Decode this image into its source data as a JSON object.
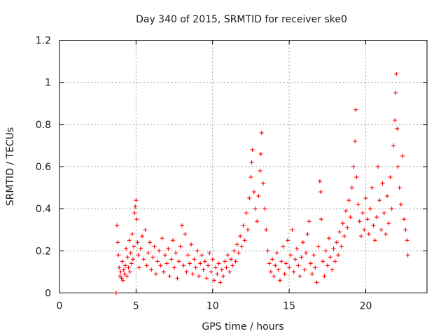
{
  "chart_data": {
    "type": "scatter",
    "title": "Day 340 of 2015, SRMTID for receiver ske0",
    "xlabel": "GPS time / hours",
    "ylabel": "SRMTID / TECUs",
    "xlim": [
      0,
      24
    ],
    "ylim": [
      0,
      1.2
    ],
    "xticks": [
      0,
      5,
      10,
      15,
      20
    ],
    "xtick_labels": [
      "0",
      "5",
      "10",
      "15",
      "20"
    ],
    "yticks": [
      0,
      0.2,
      0.4,
      0.6,
      0.8,
      1,
      1.2
    ],
    "ytick_labels": [
      "0",
      "0.2",
      "0.4",
      "0.6",
      "0.8",
      "1",
      "1.2"
    ],
    "grid": true,
    "marker": "+",
    "color": "#ff0000",
    "series": [
      {
        "name": "SRMTID",
        "points": [
          [
            3.7,
            0.0
          ],
          [
            3.75,
            0.32
          ],
          [
            3.8,
            0.24
          ],
          [
            3.85,
            0.18
          ],
          [
            3.9,
            0.12
          ],
          [
            3.95,
            0.08
          ],
          [
            4.0,
            0.1
          ],
          [
            4.05,
            0.07
          ],
          [
            4.1,
            0.15
          ],
          [
            4.15,
            0.06
          ],
          [
            4.2,
            0.11
          ],
          [
            4.25,
            0.09
          ],
          [
            4.3,
            0.13
          ],
          [
            4.35,
            0.21
          ],
          [
            4.4,
            0.08
          ],
          [
            4.45,
            0.17
          ],
          [
            4.5,
            0.12
          ],
          [
            4.55,
            0.25
          ],
          [
            4.6,
            0.1
          ],
          [
            4.65,
            0.19
          ],
          [
            4.7,
            0.14
          ],
          [
            4.75,
            0.28
          ],
          [
            4.8,
            0.16
          ],
          [
            4.85,
            0.22
          ],
          [
            4.9,
            0.38
          ],
          [
            4.95,
            0.41
          ],
          [
            5.0,
            0.44
          ],
          [
            5.05,
            0.35
          ],
          [
            5.1,
            0.24
          ],
          [
            5.15,
            0.18
          ],
          [
            5.2,
            0.12
          ],
          [
            5.3,
            0.21
          ],
          [
            5.4,
            0.27
          ],
          [
            5.5,
            0.16
          ],
          [
            5.6,
            0.3
          ],
          [
            5.7,
            0.13
          ],
          [
            5.8,
            0.19
          ],
          [
            5.9,
            0.24
          ],
          [
            6.0,
            0.11
          ],
          [
            6.1,
            0.17
          ],
          [
            6.2,
            0.22
          ],
          [
            6.3,
            0.09
          ],
          [
            6.4,
            0.15
          ],
          [
            6.5,
            0.2
          ],
          [
            6.6,
            0.13
          ],
          [
            6.7,
            0.26
          ],
          [
            6.8,
            0.1
          ],
          [
            6.9,
            0.18
          ],
          [
            7.0,
            0.14
          ],
          [
            7.1,
            0.21
          ],
          [
            7.2,
            0.08
          ],
          [
            7.3,
            0.16
          ],
          [
            7.4,
            0.25
          ],
          [
            7.5,
            0.12
          ],
          [
            7.6,
            0.19
          ],
          [
            7.7,
            0.07
          ],
          [
            7.8,
            0.15
          ],
          [
            7.9,
            0.22
          ],
          [
            8.0,
            0.32
          ],
          [
            8.1,
            0.13
          ],
          [
            8.2,
            0.28
          ],
          [
            8.3,
            0.1
          ],
          [
            8.4,
            0.18
          ],
          [
            8.5,
            0.14
          ],
          [
            8.6,
            0.23
          ],
          [
            8.7,
            0.09
          ],
          [
            8.8,
            0.16
          ],
          [
            8.9,
            0.12
          ],
          [
            9.0,
            0.2
          ],
          [
            9.1,
            0.08
          ],
          [
            9.2,
            0.14
          ],
          [
            9.3,
            0.18
          ],
          [
            9.4,
            0.11
          ],
          [
            9.5,
            0.15
          ],
          [
            9.6,
            0.07
          ],
          [
            9.7,
            0.13
          ],
          [
            9.8,
            0.19
          ],
          [
            9.9,
            0.1
          ],
          [
            10.0,
            0.16
          ],
          [
            10.1,
            0.06
          ],
          [
            10.2,
            0.12
          ],
          [
            10.3,
            0.09
          ],
          [
            10.4,
            0.14
          ],
          [
            10.5,
            0.05
          ],
          [
            10.6,
            0.11
          ],
          [
            10.7,
            0.08
          ],
          [
            10.8,
            0.15
          ],
          [
            10.9,
            0.12
          ],
          [
            11.0,
            0.18
          ],
          [
            11.1,
            0.1
          ],
          [
            11.2,
            0.16
          ],
          [
            11.3,
            0.13
          ],
          [
            11.4,
            0.2
          ],
          [
            11.5,
            0.15
          ],
          [
            11.6,
            0.23
          ],
          [
            11.7,
            0.19
          ],
          [
            11.8,
            0.27
          ],
          [
            11.9,
            0.22
          ],
          [
            12.0,
            0.32
          ],
          [
            12.1,
            0.25
          ],
          [
            12.2,
            0.38
          ],
          [
            12.3,
            0.3
          ],
          [
            12.4,
            0.45
          ],
          [
            12.5,
            0.55
          ],
          [
            12.55,
            0.62
          ],
          [
            12.6,
            0.68
          ],
          [
            12.7,
            0.48
          ],
          [
            12.8,
            0.4
          ],
          [
            12.9,
            0.34
          ],
          [
            13.0,
            0.46
          ],
          [
            13.1,
            0.58
          ],
          [
            13.15,
            0.66
          ],
          [
            13.2,
            0.76
          ],
          [
            13.3,
            0.52
          ],
          [
            13.4,
            0.4
          ],
          [
            13.5,
            0.3
          ],
          [
            13.6,
            0.2
          ],
          [
            13.7,
            0.14
          ],
          [
            13.8,
            0.1
          ],
          [
            13.9,
            0.16
          ],
          [
            14.0,
            0.08
          ],
          [
            14.1,
            0.13
          ],
          [
            14.2,
            0.19
          ],
          [
            14.3,
            0.11
          ],
          [
            14.4,
            0.06
          ],
          [
            14.5,
            0.15
          ],
          [
            14.6,
            0.22
          ],
          [
            14.7,
            0.09
          ],
          [
            14.8,
            0.14
          ],
          [
            14.9,
            0.25
          ],
          [
            15.0,
            0.12
          ],
          [
            15.1,
            0.18
          ],
          [
            15.2,
            0.3
          ],
          [
            15.3,
            0.1
          ],
          [
            15.4,
            0.16
          ],
          [
            15.5,
            0.21
          ],
          [
            15.6,
            0.13
          ],
          [
            15.7,
            0.08
          ],
          [
            15.8,
            0.17
          ],
          [
            15.9,
            0.24
          ],
          [
            16.0,
            0.11
          ],
          [
            16.1,
            0.19
          ],
          [
            16.2,
            0.28
          ],
          [
            16.3,
            0.34
          ],
          [
            16.4,
            0.14
          ],
          [
            16.5,
            0.09
          ],
          [
            16.6,
            0.18
          ],
          [
            16.7,
            0.12
          ],
          [
            16.8,
            0.05
          ],
          [
            16.9,
            0.22
          ],
          [
            17.0,
            0.53
          ],
          [
            17.05,
            0.48
          ],
          [
            17.1,
            0.35
          ],
          [
            17.2,
            0.15
          ],
          [
            17.3,
            0.08
          ],
          [
            17.4,
            0.2
          ],
          [
            17.5,
            0.13
          ],
          [
            17.6,
            0.26
          ],
          [
            17.7,
            0.17
          ],
          [
            17.8,
            0.11
          ],
          [
            17.9,
            0.21
          ],
          [
            18.0,
            0.15
          ],
          [
            18.1,
            0.24
          ],
          [
            18.2,
            0.18
          ],
          [
            18.3,
            0.29
          ],
          [
            18.4,
            0.22
          ],
          [
            18.5,
            0.33
          ],
          [
            18.6,
            0.27
          ],
          [
            18.7,
            0.39
          ],
          [
            18.8,
            0.31
          ],
          [
            18.9,
            0.44
          ],
          [
            19.0,
            0.36
          ],
          [
            19.1,
            0.5
          ],
          [
            19.2,
            0.6
          ],
          [
            19.3,
            0.72
          ],
          [
            19.35,
            0.87
          ],
          [
            19.4,
            0.55
          ],
          [
            19.5,
            0.42
          ],
          [
            19.6,
            0.34
          ],
          [
            19.7,
            0.27
          ],
          [
            19.8,
            0.38
          ],
          [
            19.9,
            0.3
          ],
          [
            20.0,
            0.45
          ],
          [
            20.1,
            0.35
          ],
          [
            20.2,
            0.28
          ],
          [
            20.3,
            0.4
          ],
          [
            20.4,
            0.5
          ],
          [
            20.5,
            0.32
          ],
          [
            20.6,
            0.25
          ],
          [
            20.7,
            0.36
          ],
          [
            20.8,
            0.6
          ],
          [
            20.9,
            0.44
          ],
          [
            21.0,
            0.3
          ],
          [
            21.1,
            0.52
          ],
          [
            21.2,
            0.38
          ],
          [
            21.3,
            0.28
          ],
          [
            21.4,
            0.46
          ],
          [
            21.5,
            0.33
          ],
          [
            21.6,
            0.55
          ],
          [
            21.7,
            0.4
          ],
          [
            21.8,
            0.7
          ],
          [
            21.9,
            0.82
          ],
          [
            21.95,
            0.95
          ],
          [
            22.0,
            1.04
          ],
          [
            22.05,
            0.78
          ],
          [
            22.1,
            0.6
          ],
          [
            22.2,
            0.5
          ],
          [
            22.3,
            0.42
          ],
          [
            22.4,
            0.65
          ],
          [
            22.5,
            0.35
          ],
          [
            22.6,
            0.3
          ],
          [
            22.7,
            0.25
          ],
          [
            22.75,
            0.18
          ]
        ]
      }
    ]
  }
}
